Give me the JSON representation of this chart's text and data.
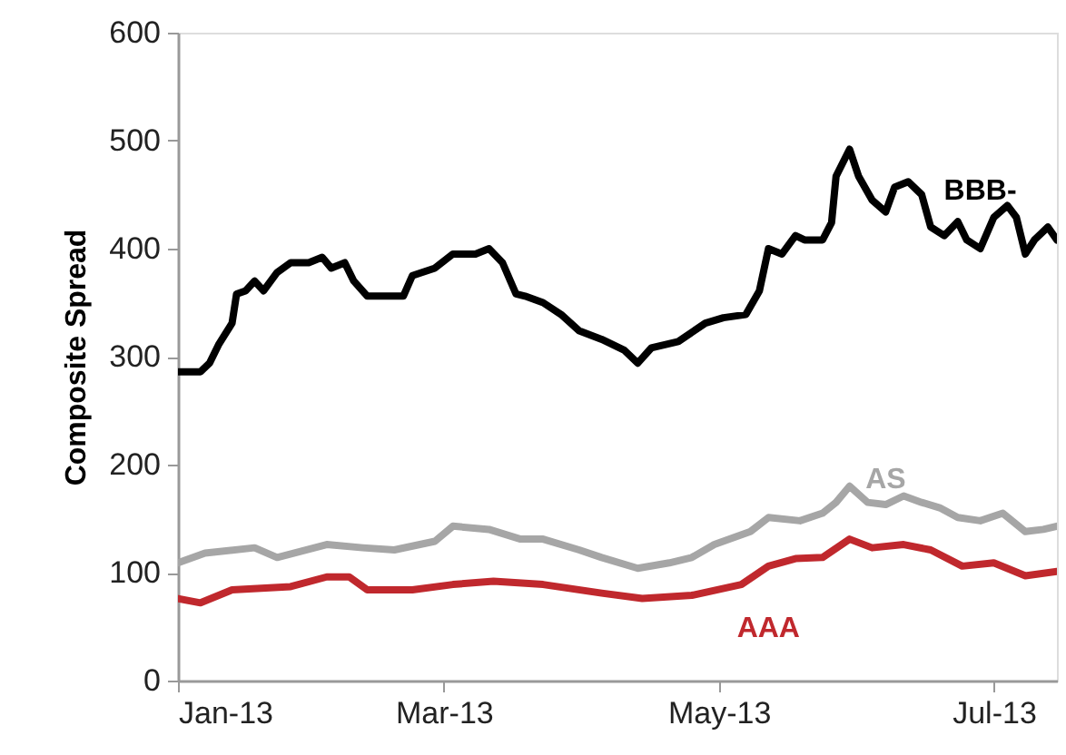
{
  "chart_data": {
    "type": "line",
    "ylabel": "Composite Spread",
    "xlim": [
      "2013-01-01",
      "2013-07-15"
    ],
    "xticks": [
      {
        "value": "2013-01-01",
        "label": "Jan-13"
      },
      {
        "value": "2013-03-01",
        "label": "Mar-13"
      },
      {
        "value": "2013-05-01",
        "label": "May-13"
      },
      {
        "value": "2013-07-01",
        "label": "Jul-13"
      }
    ],
    "ylim": [
      0,
      600
    ],
    "yticks": [
      0,
      100,
      200,
      300,
      400,
      500,
      600
    ],
    "grid": false,
    "marker": "none",
    "line_style": "solid",
    "series": [
      {
        "name": "BBB-",
        "color": "#000000",
        "x": [
          "2013-01-01",
          "2013-01-06",
          "2013-01-08",
          "2013-01-10",
          "2013-01-13",
          "2013-01-14",
          "2013-01-16",
          "2013-01-18",
          "2013-01-20",
          "2013-01-23",
          "2013-01-26",
          "2013-01-30",
          "2013-02-02",
          "2013-02-04",
          "2013-02-07",
          "2013-02-09",
          "2013-02-12",
          "2013-02-17",
          "2013-02-20",
          "2013-02-22",
          "2013-02-27",
          "2013-03-03",
          "2013-03-08",
          "2013-03-11",
          "2013-03-14",
          "2013-03-17",
          "2013-03-19",
          "2013-03-23",
          "2013-03-27",
          "2013-03-31",
          "2013-04-05",
          "2013-04-10",
          "2013-04-13",
          "2013-04-16",
          "2013-04-22",
          "2013-04-28",
          "2013-05-02",
          "2013-05-07",
          "2013-05-10",
          "2013-05-12",
          "2013-05-15",
          "2013-05-18",
          "2013-05-20",
          "2013-05-24",
          "2013-05-26",
          "2013-05-27",
          "2013-05-30",
          "2013-06-01",
          "2013-06-04",
          "2013-06-07",
          "2013-06-09",
          "2013-06-12",
          "2013-06-15",
          "2013-06-17",
          "2013-06-20",
          "2013-06-23",
          "2013-06-25",
          "2013-06-28",
          "2013-07-01",
          "2013-07-04",
          "2013-07-06",
          "2013-07-08",
          "2013-07-10",
          "2013-07-13",
          "2013-07-15"
        ],
        "values": [
          286,
          286,
          294,
          311,
          331,
          358,
          361,
          370,
          361,
          378,
          387,
          387,
          392,
          382,
          387,
          370,
          356,
          356,
          356,
          375,
          382,
          395,
          395,
          400,
          387,
          358,
          356,
          350,
          339,
          324,
          316,
          306,
          294,
          308,
          314,
          331,
          336,
          339,
          361,
          400,
          395,
          412,
          408,
          408,
          424,
          467,
          492,
          467,
          445,
          434,
          457,
          462,
          450,
          420,
          412,
          425,
          408,
          400,
          429,
          440,
          429,
          395,
          408,
          420,
          408
        ]
      },
      {
        "name": "AS",
        "color": "#a6a6a6",
        "x": [
          "2013-01-01",
          "2013-01-07",
          "2013-01-18",
          "2013-01-23",
          "2013-02-03",
          "2013-02-11",
          "2013-02-18",
          "2013-02-27",
          "2013-03-03",
          "2013-03-11",
          "2013-03-18",
          "2013-03-23",
          "2013-03-31",
          "2013-04-05",
          "2013-04-13",
          "2013-04-20",
          "2013-04-25",
          "2013-04-30",
          "2013-05-08",
          "2013-05-12",
          "2013-05-19",
          "2013-05-24",
          "2013-05-27",
          "2013-05-30",
          "2013-06-03",
          "2013-06-07",
          "2013-06-11",
          "2013-06-15",
          "2013-06-19",
          "2013-06-23",
          "2013-06-28",
          "2013-07-03",
          "2013-07-08",
          "2013-07-12",
          "2013-07-15"
        ],
        "values": [
          109,
          118,
          123,
          114,
          126,
          123,
          121,
          129,
          143,
          140,
          131,
          131,
          121,
          114,
          104,
          109,
          114,
          126,
          138,
          151,
          148,
          155,
          165,
          180,
          165,
          163,
          171,
          165,
          160,
          151,
          148,
          155,
          138,
          140,
          143
        ]
      },
      {
        "name": "AAA",
        "color": "#c0282d",
        "x": [
          "2013-01-01",
          "2013-01-06",
          "2013-01-13",
          "2013-01-26",
          "2013-02-03",
          "2013-02-08",
          "2013-02-12",
          "2013-02-22",
          "2013-03-03",
          "2013-03-12",
          "2013-03-23",
          "2013-04-05",
          "2013-04-14",
          "2013-04-25",
          "2013-05-06",
          "2013-05-12",
          "2013-05-18",
          "2013-05-24",
          "2013-05-30",
          "2013-06-04",
          "2013-06-11",
          "2013-06-17",
          "2013-06-24",
          "2013-07-01",
          "2013-07-08",
          "2013-07-15"
        ],
        "values": [
          76,
          72,
          84,
          87,
          96,
          96,
          84,
          84,
          89,
          92,
          89,
          81,
          76,
          79,
          89,
          106,
          113,
          114,
          131,
          123,
          126,
          121,
          106,
          109,
          97,
          101
        ]
      }
    ]
  }
}
